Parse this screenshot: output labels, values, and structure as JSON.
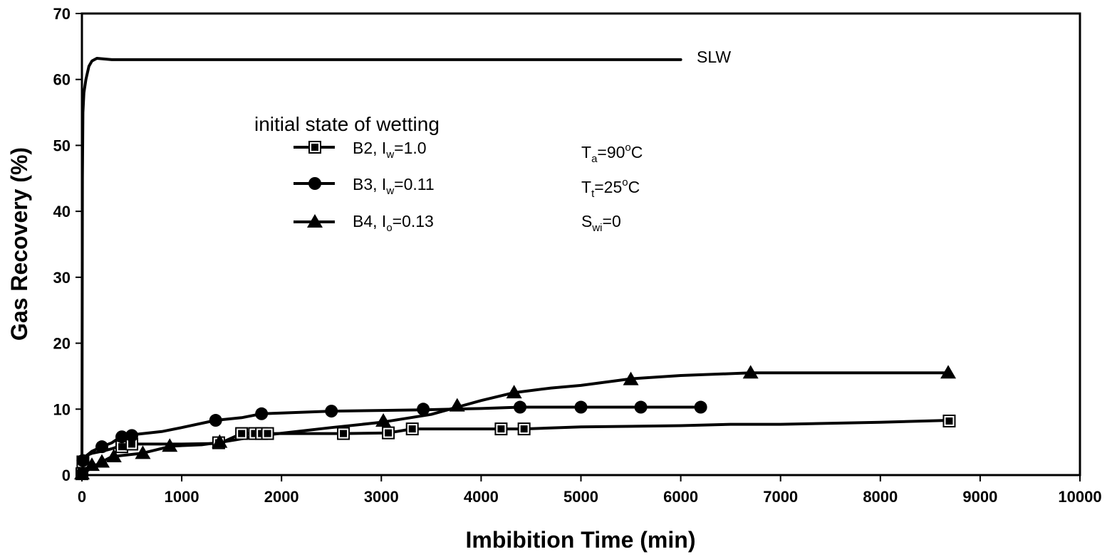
{
  "chart_data": {
    "type": "line",
    "xlabel": "Imbibition Time (min)",
    "ylabel": "Gas Recovery (%)",
    "xlim": [
      0,
      10000
    ],
    "ylim": [
      0,
      70
    ],
    "xticks": [
      "0",
      "1000",
      "2000",
      "3000",
      "4000",
      "5000",
      "6000",
      "7000",
      "8000",
      "9000",
      "10000"
    ],
    "yticks": [
      "0",
      "10",
      "20",
      "30",
      "40",
      "50",
      "60",
      "70"
    ],
    "grid": false,
    "line_color": "#000000",
    "legend": {
      "title": "initial state of wetting",
      "placement": "upper-center",
      "entries": [
        {
          "label": "B2, I",
          "sub": "w",
          "rest": "=1.0",
          "marker": "square"
        },
        {
          "label": "B3, I",
          "sub": "w",
          "rest": "=0.11",
          "marker": "circle"
        },
        {
          "label": "B4, I",
          "sub": "o",
          "rest": "=0.13",
          "marker": "triangle"
        }
      ]
    },
    "annotations": {
      "slw": "SLW",
      "ta": {
        "main": "T",
        "sub": "a",
        "mid": "=90",
        "sup": "o",
        "rest": "C"
      },
      "tt": {
        "main": "T",
        "sub": "t",
        "mid": "=25",
        "sup": "o",
        "rest": "C"
      },
      "swi": {
        "main": "S",
        "sub": "wi",
        "rest": "=0"
      }
    },
    "series": [
      {
        "name": "SLW",
        "marker": "none",
        "line": [
          [
            0,
            0
          ],
          [
            5,
            45
          ],
          [
            10,
            55
          ],
          [
            20,
            58
          ],
          [
            40,
            60
          ],
          [
            70,
            62
          ],
          [
            100,
            62.8
          ],
          [
            150,
            63.2
          ],
          [
            300,
            63
          ],
          [
            6000,
            63
          ]
        ]
      },
      {
        "name": "B2",
        "marker": "square",
        "line": [
          [
            0,
            0
          ],
          [
            10,
            2
          ],
          [
            50,
            3
          ],
          [
            100,
            3.3
          ],
          [
            200,
            3.6
          ],
          [
            300,
            4
          ],
          [
            420,
            4.6
          ],
          [
            500,
            4.7
          ],
          [
            1000,
            4.7
          ],
          [
            1380,
            4.8
          ],
          [
            1600,
            6.3
          ],
          [
            1730,
            6.3
          ],
          [
            1800,
            6.3
          ],
          [
            1850,
            6.3
          ],
          [
            2620,
            6.3
          ],
          [
            3070,
            6.4
          ],
          [
            3310,
            7
          ],
          [
            4200,
            7
          ],
          [
            4430,
            7
          ],
          [
            5000,
            7.3
          ],
          [
            6000,
            7.5
          ],
          [
            6500,
            7.7
          ],
          [
            7000,
            7.7
          ],
          [
            8000,
            8
          ],
          [
            8690,
            8.3
          ]
        ],
        "points": [
          [
            0,
            0.2
          ],
          [
            10,
            2
          ],
          [
            400,
            4.3
          ],
          [
            500,
            4.7
          ],
          [
            1370,
            4.9
          ],
          [
            1600,
            6.3
          ],
          [
            1730,
            6.3
          ],
          [
            1800,
            6.3
          ],
          [
            1860,
            6.3
          ],
          [
            2620,
            6.3
          ],
          [
            3070,
            6.4
          ],
          [
            3310,
            7
          ],
          [
            4200,
            7
          ],
          [
            4430,
            7
          ],
          [
            8690,
            8.2
          ]
        ]
      },
      {
        "name": "B3",
        "marker": "circle",
        "line": [
          [
            0,
            0
          ],
          [
            10,
            2
          ],
          [
            50,
            3
          ],
          [
            100,
            3.6
          ],
          [
            200,
            4.3
          ],
          [
            300,
            4.9
          ],
          [
            400,
            5.9
          ],
          [
            500,
            6.1
          ],
          [
            800,
            6.6
          ],
          [
            1000,
            7.2
          ],
          [
            1340,
            8.3
          ],
          [
            1600,
            8.7
          ],
          [
            1800,
            9.3
          ],
          [
            2000,
            9.4
          ],
          [
            2500,
            9.7
          ],
          [
            3000,
            9.8
          ],
          [
            3420,
            9.9
          ],
          [
            4000,
            10.1
          ],
          [
            4390,
            10.3
          ],
          [
            5000,
            10.3
          ],
          [
            5600,
            10.3
          ],
          [
            6200,
            10.3
          ]
        ],
        "points": [
          [
            0,
            0.2
          ],
          [
            10,
            2.2
          ],
          [
            200,
            4.3
          ],
          [
            400,
            5.8
          ],
          [
            500,
            6
          ],
          [
            1340,
            8.3
          ],
          [
            1800,
            9.3
          ],
          [
            2500,
            9.7
          ],
          [
            3420,
            10
          ],
          [
            4390,
            10.3
          ],
          [
            5000,
            10.3
          ],
          [
            5600,
            10.3
          ],
          [
            6200,
            10.3
          ]
        ]
      },
      {
        "name": "B4",
        "marker": "triangle",
        "line": [
          [
            0,
            0
          ],
          [
            100,
            1.2
          ],
          [
            200,
            2
          ],
          [
            300,
            2.8
          ],
          [
            600,
            3.3
          ],
          [
            900,
            4.4
          ],
          [
            1200,
            4.6
          ],
          [
            1400,
            5
          ],
          [
            1800,
            6
          ],
          [
            2500,
            7.2
          ],
          [
            3000,
            8
          ],
          [
            3500,
            9.2
          ],
          [
            3760,
            10.3
          ],
          [
            4000,
            11.3
          ],
          [
            4330,
            12.5
          ],
          [
            4700,
            13.2
          ],
          [
            5000,
            13.6
          ],
          [
            5500,
            14.6
          ],
          [
            6000,
            15.1
          ],
          [
            6700,
            15.5
          ],
          [
            7500,
            15.5
          ],
          [
            8680,
            15.5
          ]
        ],
        "points": [
          [
            0,
            0.2
          ],
          [
            100,
            1.5
          ],
          [
            200,
            2
          ],
          [
            320,
            2.8
          ],
          [
            610,
            3.3
          ],
          [
            880,
            4.4
          ],
          [
            1380,
            5
          ],
          [
            3020,
            8.2
          ],
          [
            3760,
            10.5
          ],
          [
            4330,
            12.5
          ],
          [
            5500,
            14.5
          ],
          [
            6700,
            15.5
          ],
          [
            8680,
            15.5
          ]
        ]
      }
    ]
  }
}
